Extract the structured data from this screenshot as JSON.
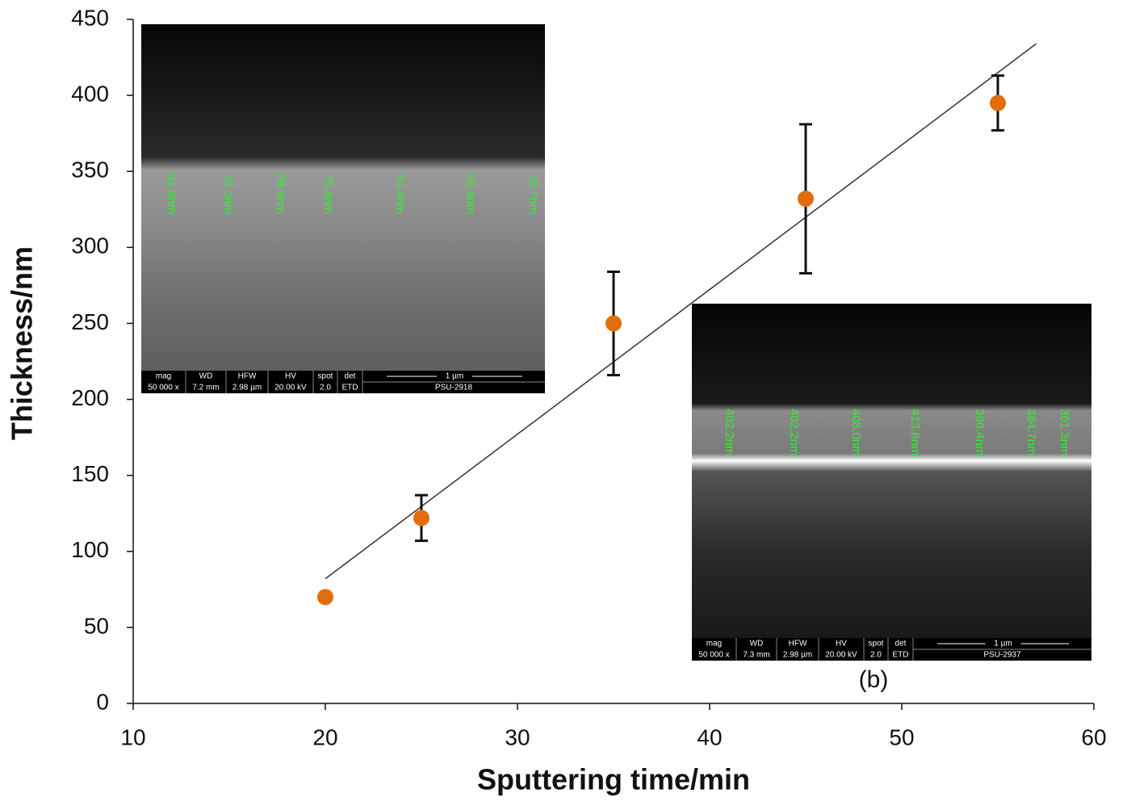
{
  "chart_data": {
    "type": "scatter",
    "x_label": "Sputtering time/min",
    "y_label": "Thickness/nm",
    "x": [
      20,
      25,
      35,
      45,
      55
    ],
    "values": [
      70,
      122,
      250,
      332,
      395
    ],
    "errors": [
      2,
      15,
      34,
      49,
      18
    ],
    "color": "#e36c0a",
    "fit": {
      "x": [
        20,
        57
      ],
      "values": [
        82,
        434
      ],
      "color": "#333333"
    },
    "xlim": [
      10,
      60
    ],
    "xticks": [
      10,
      20,
      30,
      40,
      50,
      60
    ],
    "ylim": [
      0,
      450
    ],
    "yticks": [
      0,
      50,
      100,
      150,
      200,
      250,
      300,
      350,
      400,
      450
    ],
    "grid": false,
    "annotation": "(b)",
    "insets": [
      {
        "labels": [
          "81.8nm",
          "76.0nm",
          "69.9nm",
          "75.8nm",
          "64.4nm",
          "69.9nm",
          "76.7nm"
        ],
        "footer": {
          "headers": [
            "mag",
            "WD",
            "HFW",
            "HV",
            "spot",
            "det"
          ],
          "values": [
            "50 000 x",
            "7.2 mm",
            "2.98 µm",
            "20.00 kV",
            "2.0",
            "ETD"
          ],
          "scale": "1 µm",
          "id": "PSU-2918"
        }
      },
      {
        "labels": [
          "402.2nm",
          "402.2nm",
          "408.0nm",
          "413.8nm",
          "396.4nm",
          "384.7nm",
          "361.3nm"
        ],
        "footer": {
          "headers": [
            "mag",
            "WD",
            "HFW",
            "HV",
            "spot",
            "det"
          ],
          "values": [
            "50 000 x",
            "7.3 mm",
            "2.98 µm",
            "20.00 kV",
            "2.0",
            "ETD"
          ],
          "scale": "1 µm",
          "id": "PSU-2937"
        }
      }
    ]
  }
}
